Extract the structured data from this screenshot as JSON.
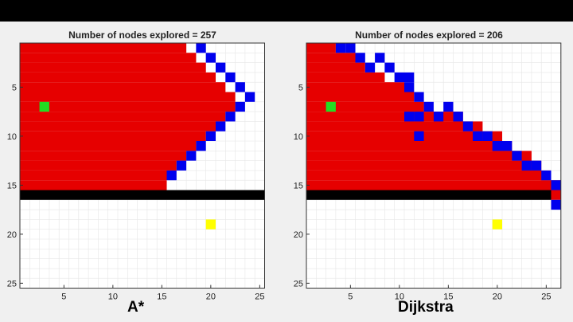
{
  "panels": [
    {
      "title": "Number of nodes explored = 257",
      "caption": "A*",
      "xticks": [
        "5",
        "10",
        "15",
        "20",
        "25"
      ],
      "yticks": [
        "5",
        "10",
        "15",
        "20",
        "25"
      ],
      "grid_size": [
        25,
        25
      ],
      "start": [
        3,
        7
      ],
      "goal": [
        20,
        19
      ],
      "wall_row": 16,
      "wall_cols": [
        1,
        25
      ],
      "explored_rows": [
        [
          1,
          17
        ],
        [
          1,
          18
        ],
        [
          1,
          19
        ],
        [
          1,
          20
        ],
        [
          1,
          21
        ],
        [
          1,
          22
        ],
        [
          1,
          22
        ],
        [
          1,
          21
        ],
        [
          1,
          20
        ],
        [
          1,
          19
        ],
        [
          1,
          18
        ],
        [
          1,
          17
        ],
        [
          1,
          16
        ],
        [
          1,
          15
        ],
        [
          1,
          15
        ]
      ],
      "frontier": [
        [
          19,
          1
        ],
        [
          20,
          2
        ],
        [
          21,
          3
        ],
        [
          22,
          4
        ],
        [
          23,
          5
        ],
        [
          24,
          6
        ],
        [
          23,
          7
        ],
        [
          22,
          8
        ],
        [
          21,
          9
        ],
        [
          20,
          10
        ],
        [
          19,
          11
        ],
        [
          18,
          12
        ],
        [
          17,
          13
        ],
        [
          16,
          14
        ]
      ]
    },
    {
      "title": "Number of nodes explored = 206",
      "caption": "Dijkstra",
      "xticks": [
        "5",
        "10",
        "15",
        "20",
        "25"
      ],
      "yticks": [
        "5",
        "10",
        "15",
        "20",
        "25"
      ],
      "grid_size": [
        26,
        25
      ],
      "start": [
        3,
        7
      ],
      "goal": [
        20,
        19
      ],
      "wall_row": 16,
      "wall_cols": [
        1,
        25
      ],
      "explored_rows": [
        [
          1,
          3
        ],
        [
          1,
          5
        ],
        [
          1,
          6
        ],
        [
          1,
          8
        ],
        [
          1,
          10
        ],
        [
          1,
          11
        ],
        [
          1,
          12
        ],
        [
          1,
          16
        ],
        [
          1,
          18
        ],
        [
          1,
          20
        ],
        [
          1,
          21
        ],
        [
          1,
          23
        ],
        [
          1,
          24
        ],
        [
          1,
          25
        ],
        [
          1,
          26
        ],
        [
          26,
          26
        ]
      ],
      "frontier": [
        [
          4,
          1
        ],
        [
          5,
          1
        ],
        [
          6,
          2
        ],
        [
          7,
          3
        ],
        [
          8,
          2
        ],
        [
          9,
          3
        ],
        [
          10,
          4
        ],
        [
          11,
          4
        ],
        [
          11,
          5
        ],
        [
          12,
          6
        ],
        [
          13,
          7
        ],
        [
          14,
          8
        ],
        [
          15,
          7
        ],
        [
          16,
          8
        ],
        [
          11,
          8
        ],
        [
          12,
          8
        ],
        [
          17,
          9
        ],
        [
          18,
          10
        ],
        [
          19,
          10
        ],
        [
          20,
          11
        ],
        [
          21,
          11
        ],
        [
          22,
          12
        ],
        [
          23,
          13
        ],
        [
          24,
          13
        ],
        [
          25,
          14
        ],
        [
          26,
          15
        ],
        [
          12,
          10
        ],
        [
          26,
          17
        ]
      ]
    }
  ],
  "colors": {
    "explored": "#e60000",
    "frontier": "#0000ee",
    "start": "#22dd22",
    "goal": "#ffff00",
    "wall": "#000000",
    "background": "#ffffff",
    "grid": "#e6e6e6"
  }
}
